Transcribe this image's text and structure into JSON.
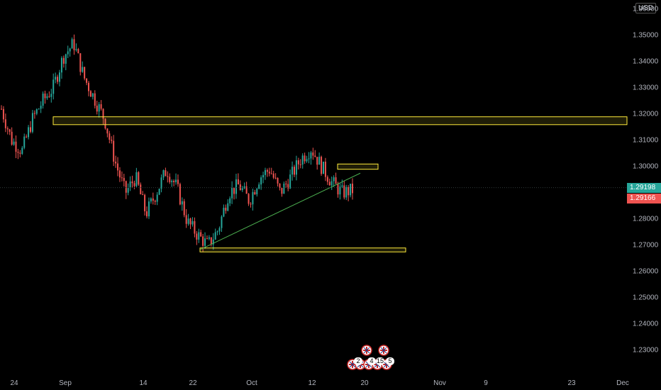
{
  "currency_label": "USD",
  "colors": {
    "up": "#26a69a",
    "down": "#ef5350",
    "zone": "#ffeb3b",
    "trendline": "#4caf50",
    "price_tag_green": "#26a69a",
    "price_tag_red": "#ef5350"
  },
  "last_price": "1.29198",
  "prev_price": "1.29166",
  "events_row": [
    "2",
    "4",
    "15",
    "5"
  ],
  "event_icon": "uk-flag-icon",
  "chart_data": {
    "type": "candlestick",
    "symbol": "",
    "yaxis_ticks": [
      "1.35000",
      "1.34000",
      "1.33000",
      "1.32000",
      "1.31000",
      "1.30000",
      "1.28000",
      "1.27000",
      "1.26000",
      "1.25000",
      "1.24000",
      "1.23000"
    ],
    "top_tick_partial": "1.36000",
    "xaxis_ticks": [
      "24",
      "Sep",
      "14",
      "22",
      "Oct",
      "12",
      "20",
      "Nov",
      "9",
      "23",
      "Dec"
    ],
    "ylim": [
      1.222,
      1.365
    ],
    "zones": [
      {
        "from_date": "Aug 27",
        "to_date": "Dec",
        "low": 1.316,
        "high": 1.319
      },
      {
        "from_date": "Oct 15",
        "to_date": "Oct 22",
        "low": 1.299,
        "high": 1.301
      },
      {
        "from_date": "Sep 22",
        "to_date": "Nov 3",
        "low": 1.2675,
        "high": 1.269
      }
    ],
    "trendline": {
      "from": {
        "date": "Sep 22",
        "price": 1.2685
      },
      "to": {
        "date": "Oct 18",
        "price": 1.2975
      }
    },
    "dotted_price_line": 1.29198,
    "ohlc_path": [
      [
        1.322,
        1.31
      ],
      [
        1.31,
        1.306
      ],
      [
        1.306,
        1.318
      ],
      [
        1.318,
        1.325
      ],
      [
        1.325,
        1.33
      ],
      [
        1.33,
        1.342
      ],
      [
        1.342,
        1.347
      ],
      [
        1.347,
        1.334
      ],
      [
        1.334,
        1.326
      ],
      [
        1.326,
        1.318
      ],
      [
        1.318,
        1.302
      ],
      [
        1.302,
        1.29
      ],
      [
        1.29,
        1.296
      ],
      [
        1.296,
        1.282
      ],
      [
        1.282,
        1.29
      ],
      [
        1.29,
        1.299
      ],
      [
        1.299,
        1.292
      ],
      [
        1.292,
        1.279
      ],
      [
        1.279,
        1.274
      ],
      [
        1.274,
        1.27
      ],
      [
        1.27,
        1.276
      ],
      [
        1.276,
        1.29
      ],
      [
        1.29,
        1.293
      ],
      [
        1.293,
        1.287
      ],
      [
        1.287,
        1.296
      ],
      [
        1.296,
        1.299
      ],
      [
        1.299,
        1.29
      ],
      [
        1.29,
        1.296
      ],
      [
        1.296,
        1.303
      ],
      [
        1.303,
        1.307
      ],
      [
        1.307,
        1.3
      ],
      [
        1.3,
        1.294
      ],
      [
        1.294,
        1.29
      ],
      [
        1.29,
        1.291
      ]
    ]
  }
}
